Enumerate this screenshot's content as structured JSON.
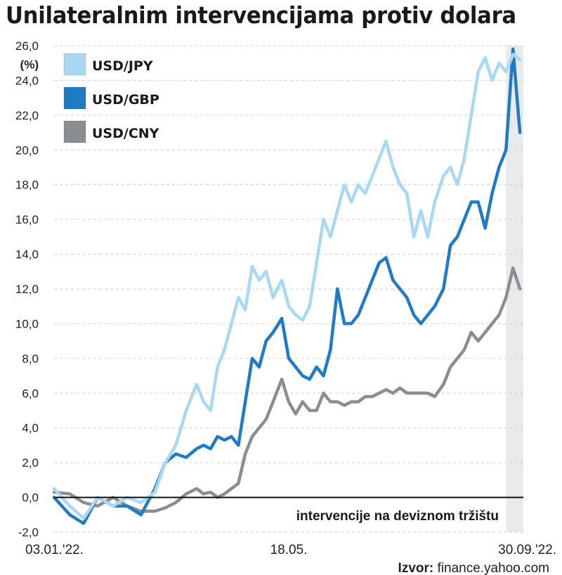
{
  "chart_data": {
    "type": "line",
    "title": "Unilateralnim intervencijama protiv dolara",
    "ylabel": "(%)",
    "ylim": [
      -2,
      26
    ],
    "yticks": [
      "-2,0",
      "0,0",
      "2,0",
      "4,0",
      "6,0",
      "8,0",
      "10,0",
      "12,0",
      "14,0",
      "16,0",
      "18,0",
      "20,0",
      "22,0",
      "24,0",
      "26,0"
    ],
    "ytick_values": [
      -2,
      0,
      2,
      4,
      6,
      8,
      10,
      12,
      14,
      16,
      18,
      20,
      22,
      24,
      26
    ],
    "x_unit": "days since 03.01.2022",
    "xlim": [
      0,
      270
    ],
    "xticks": [
      {
        "value": 0,
        "label": "03.01.'22."
      },
      {
        "value": 135,
        "label": "18.05."
      },
      {
        "value": 270,
        "label": "30.09.'22."
      }
    ],
    "x": [
      0,
      9,
      17,
      25,
      34,
      42,
      50,
      58,
      64,
      70,
      76,
      82,
      86,
      90,
      94,
      98,
      102,
      106,
      110,
      114,
      118,
      122,
      126,
      131,
      135,
      139,
      143,
      147,
      151,
      155,
      159,
      163,
      167,
      171,
      175,
      179,
      183,
      187,
      191,
      195,
      199,
      203,
      207,
      211,
      215,
      219,
      224,
      228,
      232,
      236,
      240,
      244,
      248,
      252,
      256,
      260,
      264,
      268
    ],
    "series": [
      {
        "name": "USD/JPY",
        "color": "#a9d9f2",
        "values": [
          0.5,
          -0.5,
          -1.2,
          0,
          -0.5,
          0,
          -0.3,
          0.3,
          2,
          3,
          5,
          6.5,
          5.5,
          5,
          7.5,
          8.5,
          10,
          11.5,
          10.8,
          13.3,
          12.5,
          13,
          11.5,
          12.5,
          11,
          10.5,
          10.2,
          11,
          13.5,
          16,
          15,
          16.5,
          18,
          17,
          18,
          17.5,
          18.5,
          19.5,
          20.5,
          19,
          18,
          17.5,
          15,
          16.5,
          15,
          17,
          18.5,
          19,
          18,
          19.5,
          22,
          24.5,
          25.3,
          24,
          25,
          24.5,
          25.5,
          25.2
        ]
      },
      {
        "name": "USD/GBP",
        "color": "#1f7bc4",
        "values": [
          0,
          -1,
          -1.5,
          0,
          -0.5,
          -0.5,
          -1,
          0.5,
          2,
          2.5,
          2.3,
          2.8,
          3,
          2.8,
          3.5,
          3.3,
          3.5,
          3,
          5.5,
          8,
          7.5,
          9,
          9.5,
          10.3,
          8,
          7.5,
          7,
          6.8,
          7.5,
          7,
          8.5,
          12,
          10,
          10,
          10.5,
          11.5,
          12.5,
          13.5,
          13.8,
          12.5,
          12,
          11.5,
          10.5,
          10,
          10.5,
          11,
          12,
          14.5,
          15,
          16,
          17,
          17,
          15.5,
          17.5,
          19,
          20,
          25.8,
          21
        ]
      },
      {
        "name": "USD/CNY",
        "color": "#8a8e93",
        "values": [
          0.3,
          0.2,
          -0.3,
          -0.5,
          0,
          -0.5,
          -0.8,
          -0.8,
          -0.6,
          -0.3,
          0.2,
          0.5,
          0.2,
          0.3,
          0,
          0.2,
          0.5,
          0.8,
          2.5,
          3.5,
          4,
          4.5,
          5.5,
          6.8,
          5.5,
          4.8,
          5.5,
          5,
          5,
          6,
          5.5,
          5.5,
          5.3,
          5.5,
          5.5,
          5.8,
          5.8,
          6,
          6.2,
          6,
          6.3,
          6,
          6,
          6,
          6,
          5.8,
          6.5,
          7.5,
          8,
          8.5,
          9.5,
          9,
          9.5,
          10,
          10.5,
          11.5,
          13.2,
          12
        ]
      }
    ],
    "highlight_range": [
      260,
      270
    ],
    "annotation": "intervencije na deviznom tržištu",
    "legend": "top-left",
    "grid": true
  },
  "source": {
    "label": "Izvor:",
    "value": "finance.yahoo.com"
  }
}
